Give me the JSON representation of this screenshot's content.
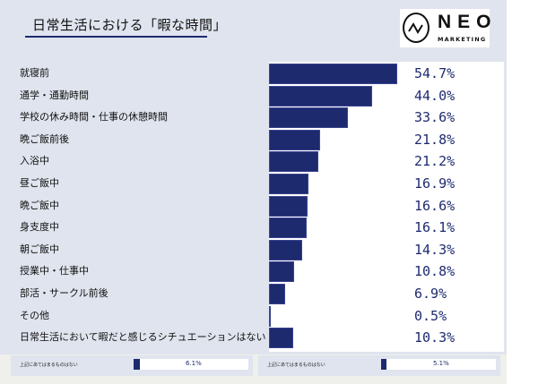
{
  "title": "日常生活における「暇な時間」",
  "logo": {
    "name": "NEO",
    "sub": "MARKETING"
  },
  "colors": {
    "bar": "#1e2a6e",
    "panel": "#dfe4ee"
  },
  "chart_data": {
    "type": "bar",
    "orientation": "horizontal",
    "title": "日常生活における「暇な時間」",
    "categories": [
      "就寝前",
      "通学・通勤時間",
      "学校の休み時間・仕事の休憩時間",
      "晩ご飯前後",
      "入浴中",
      "昼ご飯中",
      "晩ご飯中",
      "身支度中",
      "朝ご飯中",
      "授業中・仕事中",
      "部活・サークル前後",
      "その他",
      "日常生活において暇だと感じるシチュエーションはない"
    ],
    "values": [
      54.7,
      44.0,
      33.6,
      21.8,
      21.2,
      16.9,
      16.6,
      16.1,
      14.3,
      10.8,
      6.9,
      0.5,
      10.3
    ],
    "value_labels": [
      "54.7%",
      "44.0%",
      "33.6%",
      "21.8%",
      "21.2%",
      "16.9%",
      "16.6%",
      "16.1%",
      "14.3%",
      "10.8%",
      "6.9%",
      "0.5%",
      "10.3%"
    ],
    "xlim": [
      0,
      100
    ],
    "grid": false
  },
  "footer": [
    {
      "label": "上記にあてはまるものはない",
      "value": 6.1,
      "value_label": "6.1%"
    },
    {
      "label": "上記にあてはまるものはない",
      "value": 5.1,
      "value_label": "5.1%"
    }
  ]
}
